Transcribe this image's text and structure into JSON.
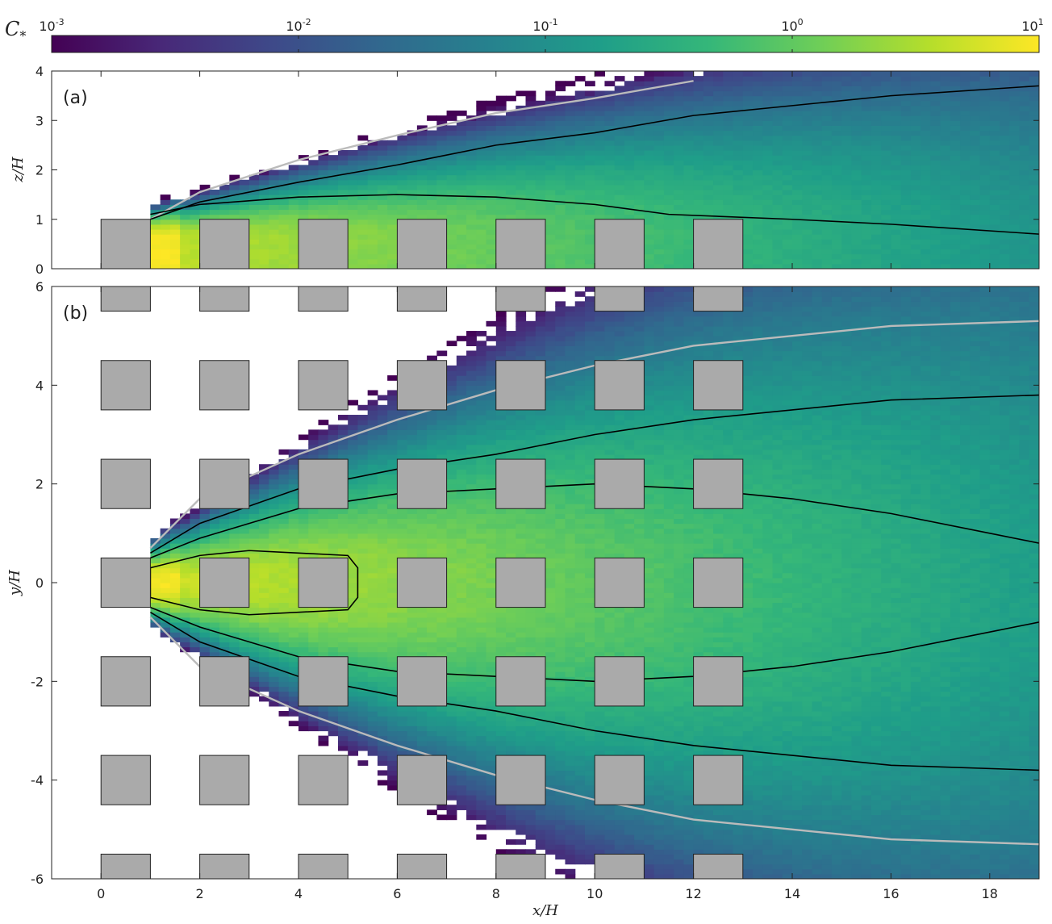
{
  "chart_data": [
    {
      "type": "heatmap",
      "panel": "(a)",
      "ylabel": "z/H",
      "xlabel": "",
      "xlim": [
        -1,
        19
      ],
      "ylim": [
        0,
        4
      ],
      "yticks": [
        0,
        1,
        2,
        3,
        4
      ],
      "obstacles_xz": [
        [
          0,
          1,
          0,
          1
        ],
        [
          2,
          3,
          0,
          1
        ],
        [
          4,
          5,
          0,
          1
        ],
        [
          6,
          7,
          0,
          1
        ],
        [
          8,
          9,
          0,
          1
        ],
        [
          10,
          11,
          0,
          1
        ],
        [
          12,
          13,
          0,
          1
        ]
      ],
      "plume": {
        "source_x": 1,
        "source_z": 0.5,
        "ridge_z": 0.6,
        "spread_rate": 0.17,
        "peak_log10": 1.0,
        "decay_rate": 0.085
      },
      "contours": [
        {
          "level": 0.001,
          "color": "#bbbbbb",
          "z": [
            [
              1,
              1.0
            ],
            [
              2,
              1.55
            ],
            [
              4,
              2.2
            ],
            [
              6,
              2.7
            ],
            [
              8,
              3.15
            ],
            [
              10,
              3.45
            ],
            [
              12,
              3.8
            ]
          ]
        },
        {
          "level": 0.01,
          "color": "#000000",
          "z": [
            [
              1,
              1.0
            ],
            [
              2,
              1.35
            ],
            [
              4,
              1.75
            ],
            [
              6,
              2.1
            ],
            [
              8,
              2.5
            ],
            [
              10,
              2.75
            ],
            [
              12,
              3.1
            ],
            [
              14,
              3.3
            ],
            [
              16,
              3.5
            ],
            [
              19,
              3.7
            ]
          ]
        },
        {
          "level": 0.1,
          "color": "#000000",
          "z": [
            [
              1,
              1.1
            ],
            [
              2,
              1.3
            ],
            [
              4,
              1.45
            ],
            [
              6,
              1.5
            ],
            [
              8,
              1.45
            ],
            [
              10,
              1.3
            ],
            [
              11.5,
              1.1
            ],
            [
              14,
              1.0
            ],
            [
              16,
              0.9
            ],
            [
              19,
              0.7
            ]
          ]
        }
      ]
    },
    {
      "type": "heatmap",
      "panel": "(b)",
      "ylabel": "y/H",
      "xlabel": "x/H",
      "xlim": [
        -1,
        19
      ],
      "ylim": [
        -6,
        6
      ],
      "xticks": [
        0,
        2,
        4,
        6,
        8,
        10,
        12,
        14,
        16,
        18
      ],
      "yticks": [
        -6,
        -4,
        -2,
        0,
        2,
        4,
        6
      ],
      "obstacle_columns_x": [
        0,
        2,
        4,
        6,
        8,
        10,
        12
      ],
      "obstacle_rows_y": [
        -6,
        -4,
        -2,
        0,
        2,
        4,
        6
      ],
      "plume": {
        "source_x": 1,
        "source_y": 0,
        "spread_rate": 0.27,
        "peak_log10": 1.0,
        "decay_rate": 0.085
      },
      "contours": [
        {
          "level": 0.001,
          "color": "#bbbbbb",
          "y": [
            [
              1,
              0.7
            ],
            [
              2,
              1.7
            ],
            [
              4,
              2.6
            ],
            [
              6,
              3.3
            ],
            [
              8,
              3.9
            ],
            [
              10,
              4.4
            ],
            [
              12,
              4.8
            ],
            [
              14,
              5.0
            ],
            [
              16,
              5.2
            ],
            [
              19,
              5.3
            ]
          ]
        },
        {
          "level": 0.01,
          "color": "#000000",
          "y": [
            [
              1,
              0.6
            ],
            [
              2,
              1.2
            ],
            [
              4,
              1.9
            ],
            [
              6,
              2.3
            ],
            [
              8,
              2.6
            ],
            [
              10,
              3.0
            ],
            [
              12,
              3.3
            ],
            [
              14,
              3.5
            ],
            [
              16,
              3.7
            ],
            [
              19,
              3.8
            ]
          ]
        },
        {
          "level": 0.1,
          "color": "#000000",
          "y": [
            [
              1,
              0.5
            ],
            [
              2,
              0.9
            ],
            [
              4,
              1.5
            ],
            [
              6,
              1.8
            ],
            [
              8,
              1.9
            ],
            [
              10,
              2.0
            ],
            [
              12,
              1.9
            ],
            [
              14,
              1.7
            ],
            [
              16,
              1.4
            ],
            [
              18,
              1.0
            ],
            [
              19,
              0.8
            ]
          ]
        },
        {
          "level": 1.0,
          "color": "#000000",
          "y": [
            [
              1,
              0.3
            ],
            [
              2,
              0.55
            ],
            [
              3,
              0.65
            ],
            [
              4,
              0.6
            ],
            [
              5,
              0.55
            ],
            [
              5.2,
              0.3
            ]
          ]
        }
      ]
    }
  ],
  "colorbar": {
    "label": "C*",
    "label_base": "C",
    "label_sub": "*",
    "scale": "log",
    "range": [
      0.001,
      10
    ],
    "ticks": [
      {
        "base": "10",
        "exp": "-3",
        "value": 0.001
      },
      {
        "base": "10",
        "exp": "-2",
        "value": 0.01
      },
      {
        "base": "10",
        "exp": "-1",
        "value": 0.1
      },
      {
        "base": "10",
        "exp": "0",
        "value": 1
      },
      {
        "base": "10",
        "exp": "1",
        "value": 10
      }
    ],
    "colormap": "viridis"
  },
  "colors": {
    "obstacle": "#aaaaaa",
    "contour_low": "#bbbbbb",
    "contour": "#000000"
  }
}
